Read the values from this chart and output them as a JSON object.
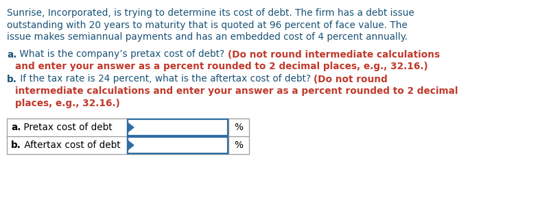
{
  "bg_color": "#ffffff",
  "text_color_dark": "#1a5276",
  "text_color_red": "#c0392b",
  "para_line1": "Sunrise, Incorporated, is trying to determine its cost of debt. The firm has a debt issue",
  "para_line2": "outstanding with 20 years to maturity that is quoted at 96 percent of face value. The",
  "para_line3": "issue makes semiannual payments and has an embedded cost of 4 percent annually.",
  "a_label": "a.",
  "a_normal": " What is the company’s pretax cost of debt? ",
  "a_bold_line1": "(Do not round intermediate calculations",
  "a_bold_line2": "and enter your answer as a percent rounded to 2 decimal places, e.g., 32.16.)",
  "b_label": "b.",
  "b_normal": " If the tax rate is 24 percent, what is the aftertax cost of debt? ",
  "b_bold_line1": "(Do not round",
  "b_bold_line2": "intermediate calculations and enter your answer as a percent rounded to 2 decimal",
  "b_bold_line3": "places, e.g., 32.16.)",
  "table_label_a": "a.",
  "table_label_a_rest": " Pretax cost of debt",
  "table_label_b": "b.",
  "table_label_b_rest": " Aftertax cost of debt",
  "table_pct": "%",
  "input_box_color": "#2e6da4",
  "table_border_color": "#999999",
  "font_size": 9.8,
  "font_size_table": 9.8,
  "fig_width": 7.87,
  "fig_height": 3.27,
  "dpi": 100
}
